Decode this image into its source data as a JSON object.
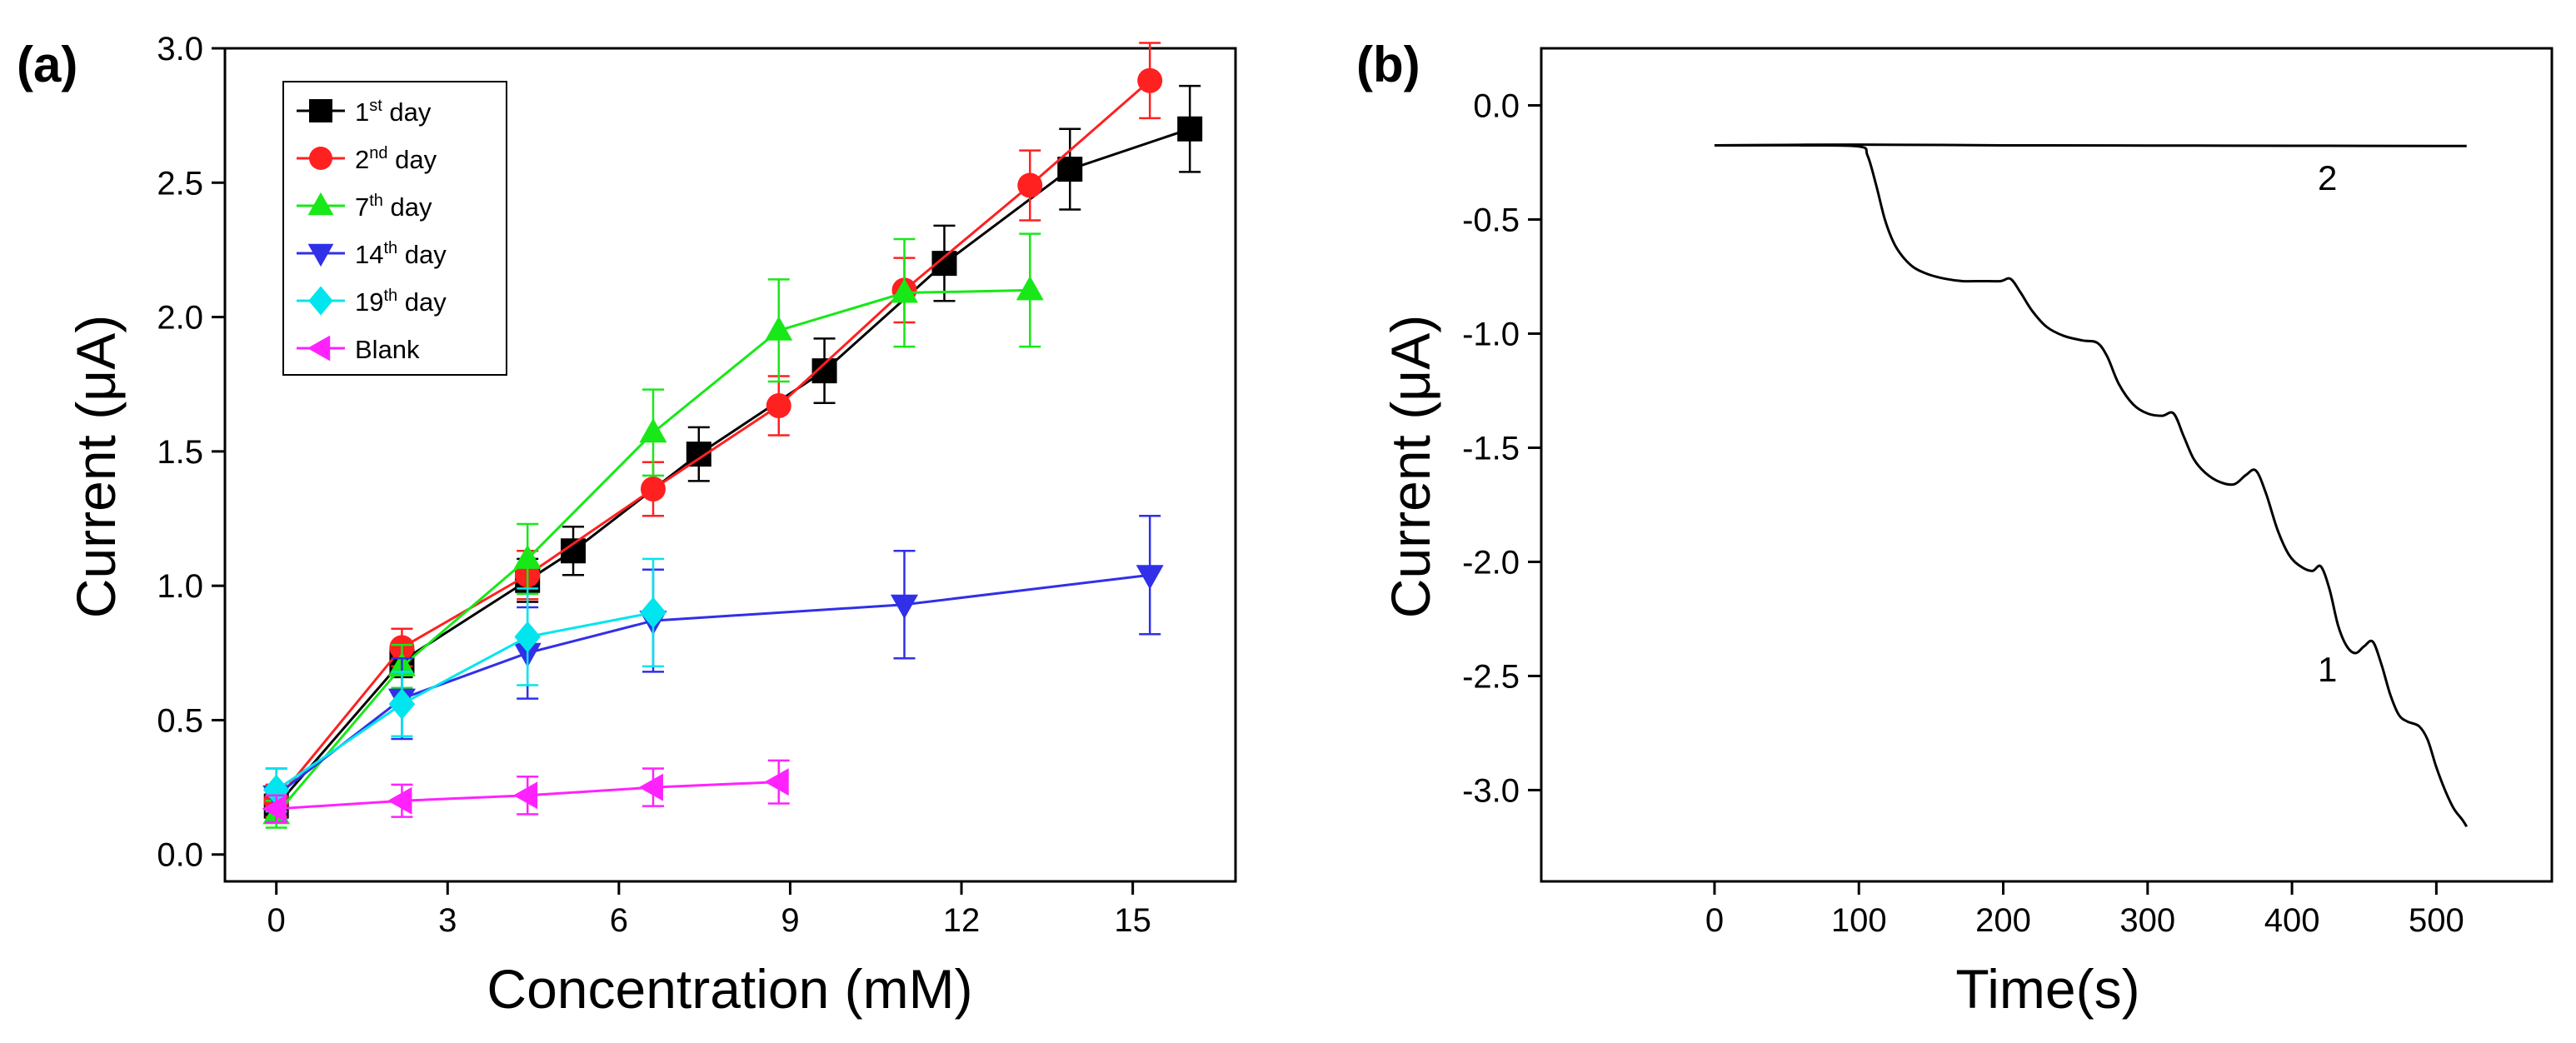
{
  "chart_data": [
    {
      "panel": "(a)",
      "type": "line",
      "xlabel": "Concentration (mM)",
      "ylabel": "Current (μA)",
      "xlim": [
        -0.9,
        16.8
      ],
      "ylim": [
        -0.1,
        3.0
      ],
      "xticks": [
        0,
        3,
        6,
        9,
        12,
        15
      ],
      "yticks": [
        0.0,
        0.5,
        1.0,
        1.5,
        2.0,
        2.5,
        3.0
      ],
      "xtick_labels": [
        "0",
        "3",
        "6",
        "9",
        "12",
        "15"
      ],
      "ytick_labels": [
        "0.0",
        "0.5",
        "1.0",
        "1.5",
        "2.0",
        "2.5",
        "3.0"
      ],
      "legend_position": "top-left",
      "series": [
        {
          "name": "1st day",
          "label_main": "1",
          "label_sup": "st",
          "label_rest": " day",
          "color": "#000000",
          "marker": "square",
          "x": [
            0,
            2.2,
            4.4,
            5.2,
            7.4,
            9.6,
            11.7,
            13.9,
            16.0
          ],
          "y": [
            0.18,
            0.72,
            1.02,
            1.13,
            1.49,
            1.8,
            2.2,
            2.55,
            2.7
          ],
          "err": [
            0.05,
            0.06,
            0.08,
            0.09,
            0.1,
            0.12,
            0.14,
            0.15,
            0.16
          ]
        },
        {
          "name": "2nd day",
          "label_main": "2",
          "label_sup": "nd",
          "label_rest": " day",
          "color": "#ff2020",
          "marker": "circle",
          "x": [
            0,
            2.2,
            4.4,
            6.6,
            8.8,
            11.0,
            13.2,
            15.3
          ],
          "y": [
            0.2,
            0.77,
            1.04,
            1.36,
            1.67,
            2.1,
            2.49,
            2.88
          ],
          "err": [
            0.06,
            0.07,
            0.09,
            0.1,
            0.11,
            0.12,
            0.13,
            0.14
          ]
        },
        {
          "name": "7th day",
          "label_main": "7",
          "label_sup": "th",
          "label_rest": " day",
          "color": "#18e818",
          "marker": "triangle-up",
          "x": [
            0,
            2.2,
            4.4,
            6.6,
            8.8,
            11.0,
            13.2
          ],
          "y": [
            0.15,
            0.7,
            1.1,
            1.57,
            1.95,
            2.09,
            2.1
          ],
          "err": [
            0.05,
            0.08,
            0.13,
            0.16,
            0.19,
            0.2,
            0.21
          ]
        },
        {
          "name": "14th day",
          "label_main": "14",
          "label_sup": "th",
          "label_rest": " day",
          "color": "#3030e8",
          "marker": "triangle-down",
          "x": [
            0,
            2.2,
            4.4,
            6.6,
            11.0,
            15.3
          ],
          "y": [
            0.22,
            0.58,
            0.75,
            0.87,
            0.93,
            1.04
          ],
          "err": [
            0.1,
            0.15,
            0.17,
            0.19,
            0.2,
            0.22
          ]
        },
        {
          "name": "19th day",
          "label_main": "19",
          "label_sup": "th",
          "label_rest": " day",
          "color": "#00e5ee",
          "marker": "diamond",
          "x": [
            0,
            2.2,
            4.4,
            6.6
          ],
          "y": [
            0.24,
            0.56,
            0.81,
            0.9
          ],
          "err": [
            0.08,
            0.12,
            0.18,
            0.2
          ]
        },
        {
          "name": "Blank",
          "label_main": "Blank",
          "label_sup": "",
          "label_rest": "",
          "color": "#ff22ff",
          "marker": "triangle-left",
          "x": [
            0,
            2.2,
            4.4,
            6.6,
            8.8
          ],
          "y": [
            0.17,
            0.2,
            0.22,
            0.25,
            0.27
          ],
          "err": [
            0.05,
            0.06,
            0.07,
            0.07,
            0.08
          ]
        }
      ]
    },
    {
      "panel": "(b)",
      "type": "line",
      "xlabel": "Time(s)",
      "ylabel": "Current (μA)",
      "xlim": [
        -120,
        580
      ],
      "ylim": [
        -3.4,
        0.25
      ],
      "xticks": [
        0,
        100,
        200,
        300,
        400,
        500
      ],
      "yticks": [
        0.0,
        -0.5,
        -1.0,
        -1.5,
        -2.0,
        -2.5,
        -3.0
      ],
      "xtick_labels": [
        "0",
        "100",
        "200",
        "300",
        "400",
        "500"
      ],
      "ytick_labels": [
        "0.0",
        "-0.5",
        "-1.0",
        "-1.5",
        "-2.0",
        "-2.5",
        "-3.0"
      ],
      "series": [
        {
          "name": "1",
          "color": "#000000",
          "x": [
            0,
            60,
            100,
            106,
            112,
            118,
            124,
            130,
            138,
            148,
            160,
            172,
            185,
            198,
            205,
            212,
            220,
            230,
            242,
            255,
            265,
            272,
            280,
            290,
            300,
            310,
            318,
            325,
            332,
            340,
            350,
            360,
            368,
            375,
            382,
            390,
            398,
            406,
            414,
            420,
            426,
            432,
            438,
            444,
            450,
            456,
            462,
            468,
            474,
            480,
            488,
            494,
            500,
            506,
            512,
            518,
            521
          ],
          "y": [
            -0.175,
            -0.175,
            -0.18,
            -0.22,
            -0.35,
            -0.5,
            -0.6,
            -0.66,
            -0.71,
            -0.74,
            -0.76,
            -0.77,
            -0.77,
            -0.77,
            -0.76,
            -0.82,
            -0.9,
            -0.97,
            -1.01,
            -1.03,
            -1.04,
            -1.1,
            -1.22,
            -1.31,
            -1.35,
            -1.36,
            -1.35,
            -1.45,
            -1.55,
            -1.61,
            -1.65,
            -1.66,
            -1.62,
            -1.6,
            -1.7,
            -1.86,
            -1.97,
            -2.02,
            -2.04,
            -2.02,
            -2.12,
            -2.28,
            -2.37,
            -2.4,
            -2.37,
            -2.35,
            -2.45,
            -2.58,
            -2.67,
            -2.7,
            -2.72,
            -2.78,
            -2.9,
            -3.0,
            -3.08,
            -3.13,
            -3.16
          ]
        },
        {
          "name": "2",
          "color": "#000000",
          "x": [
            0,
            100,
            200,
            300,
            400,
            521
          ],
          "y": [
            -0.175,
            -0.172,
            -0.175,
            -0.176,
            -0.177,
            -0.178
          ]
        }
      ]
    }
  ]
}
